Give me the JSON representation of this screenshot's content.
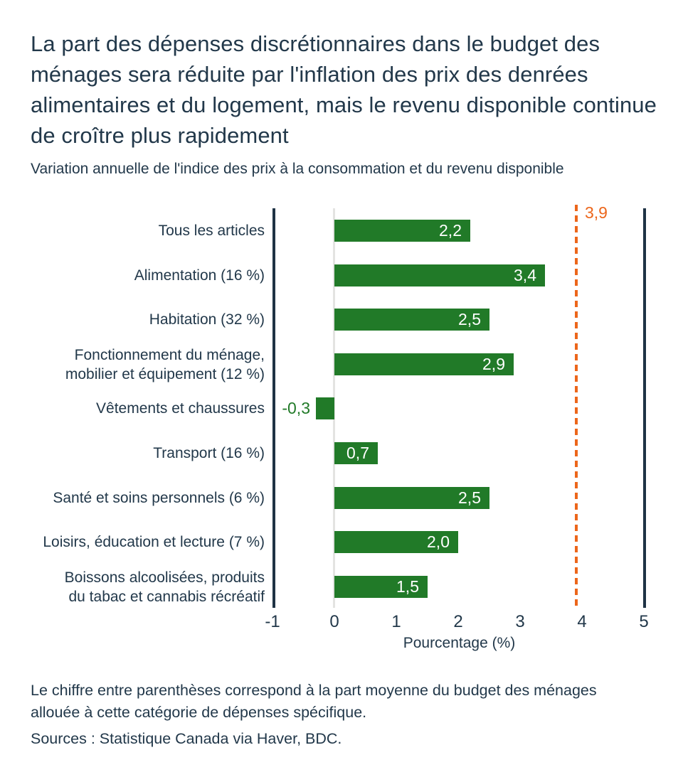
{
  "header": {
    "title": "La part des dépenses discrétionnaires dans le budget des ménages sera réduite par l'inflation des prix des denrées alimentaires et du logement, mais le revenu disponible continue de croître plus rapidement",
    "subtitle": "Variation annuelle de l'indice des prix à la consommation et du revenu disponible"
  },
  "chart_data": {
    "type": "bar",
    "orientation": "horizontal",
    "categories": [
      "Tous les articles",
      "Alimentation (16 %)",
      "Habitation (32 %)",
      "Fonctionnement du ménage,\nmobilier et équipement (12 %)",
      "Vêtements et chaussures",
      "Transport (16 %)",
      "Santé et soins personnels (6 %)",
      "Loisirs, éducation et lecture (7 %)",
      "Boissons alcoolisées, produits\ndu tabac et cannabis récréatif"
    ],
    "values": [
      2.2,
      3.4,
      2.5,
      2.9,
      -0.3,
      0.7,
      2.5,
      2.0,
      1.5
    ],
    "value_labels": [
      "2,2",
      "3,4",
      "2,5",
      "2,9",
      "-0,3",
      "0,7",
      "2,5",
      "2,0",
      "1,5"
    ],
    "xlabel": "Pourcentage (%)",
    "xlim": [
      -1,
      5
    ],
    "xtick_values": [
      -1,
      0,
      1,
      2,
      3,
      4,
      5
    ],
    "xtick_labels": [
      "-1",
      "0",
      "1",
      "2",
      "3",
      "4",
      "5"
    ],
    "reference_line": {
      "value": 3.9,
      "label": "3,9",
      "color": "#ec661b"
    },
    "bar_color": "#217a28",
    "axis_color": "#1f3345",
    "zero_line_color": "#e3e3e1",
    "grid": false,
    "legend": false
  },
  "footnotes": {
    "note": "Le chiffre entre parenthèses correspond à la part moyenne du budget des ménages allouée à cette catégorie de dépenses spécifique.",
    "sources": "Sources : Statistique Canada via Haver, BDC."
  }
}
